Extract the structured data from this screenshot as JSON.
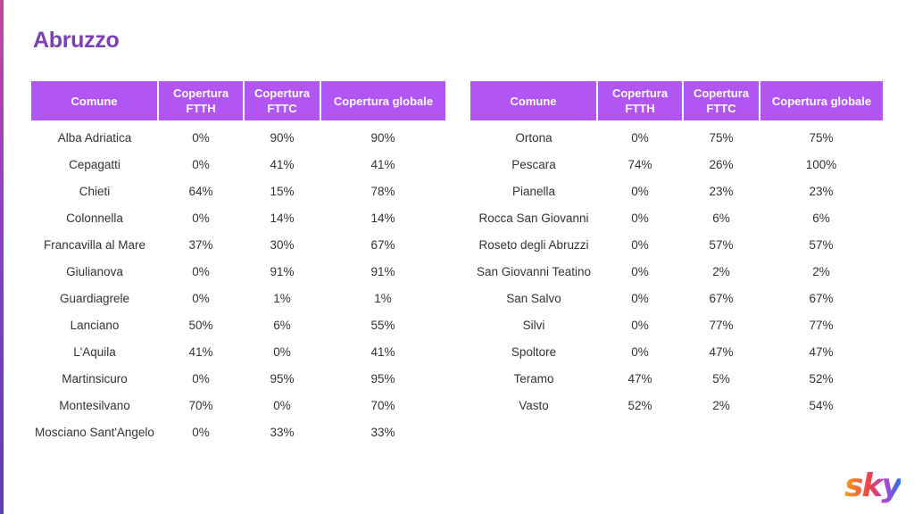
{
  "page": {
    "title": "Abruzzo"
  },
  "brand": {
    "logo_text": "sky",
    "colors": {
      "title": "#7b40b5",
      "header_bg": "#b255f5",
      "header_text": "#ffffff",
      "body_text": "#333333",
      "logo_gradient": [
        "#f6a21b",
        "#ef3d4f",
        "#a44ad6",
        "#2a6fe8"
      ]
    }
  },
  "table_headers": [
    "Comune",
    "Copertura FTTH",
    "Copertura FTTC",
    "Copertura globale"
  ],
  "left_table": {
    "rows": [
      {
        "comune": "Alba Adriatica",
        "ftth": "0%",
        "fttc": "90%",
        "globale": "90%"
      },
      {
        "comune": "Cepagatti",
        "ftth": "0%",
        "fttc": "41%",
        "globale": "41%"
      },
      {
        "comune": "Chieti",
        "ftth": "64%",
        "fttc": "15%",
        "globale": "78%"
      },
      {
        "comune": "Colonnella",
        "ftth": "0%",
        "fttc": "14%",
        "globale": "14%"
      },
      {
        "comune": "Francavilla al Mare",
        "ftth": "37%",
        "fttc": "30%",
        "globale": "67%"
      },
      {
        "comune": "Giulianova",
        "ftth": "0%",
        "fttc": "91%",
        "globale": "91%"
      },
      {
        "comune": "Guardiagrele",
        "ftth": "0%",
        "fttc": "1%",
        "globale": "1%"
      },
      {
        "comune": "Lanciano",
        "ftth": "50%",
        "fttc": "6%",
        "globale": "55%"
      },
      {
        "comune": "L'Aquila",
        "ftth": "41%",
        "fttc": "0%",
        "globale": "41%"
      },
      {
        "comune": "Martinsicuro",
        "ftth": "0%",
        "fttc": "95%",
        "globale": "95%"
      },
      {
        "comune": "Montesilvano",
        "ftth": "70%",
        "fttc": "0%",
        "globale": "70%"
      },
      {
        "comune": "Mosciano Sant'Angelo",
        "ftth": "0%",
        "fttc": "33%",
        "globale": "33%"
      }
    ]
  },
  "right_table": {
    "rows": [
      {
        "comune": "Ortona",
        "ftth": "0%",
        "fttc": "75%",
        "globale": "75%"
      },
      {
        "comune": "Pescara",
        "ftth": "74%",
        "fttc": "26%",
        "globale": "100%"
      },
      {
        "comune": "Pianella",
        "ftth": "0%",
        "fttc": "23%",
        "globale": "23%"
      },
      {
        "comune": "Rocca San Giovanni",
        "ftth": "0%",
        "fttc": "6%",
        "globale": "6%"
      },
      {
        "comune": "Roseto degli Abruzzi",
        "ftth": "0%",
        "fttc": "57%",
        "globale": "57%"
      },
      {
        "comune": "San Giovanni Teatino",
        "ftth": "0%",
        "fttc": "2%",
        "globale": "2%"
      },
      {
        "comune": "San Salvo",
        "ftth": "0%",
        "fttc": "67%",
        "globale": "67%"
      },
      {
        "comune": "Silvi",
        "ftth": "0%",
        "fttc": "77%",
        "globale": "77%"
      },
      {
        "comune": "Spoltore",
        "ftth": "0%",
        "fttc": "47%",
        "globale": "47%"
      },
      {
        "comune": "Teramo",
        "ftth": "47%",
        "fttc": "5%",
        "globale": "52%"
      },
      {
        "comune": "Vasto",
        "ftth": "52%",
        "fttc": "2%",
        "globale": "54%"
      }
    ]
  }
}
